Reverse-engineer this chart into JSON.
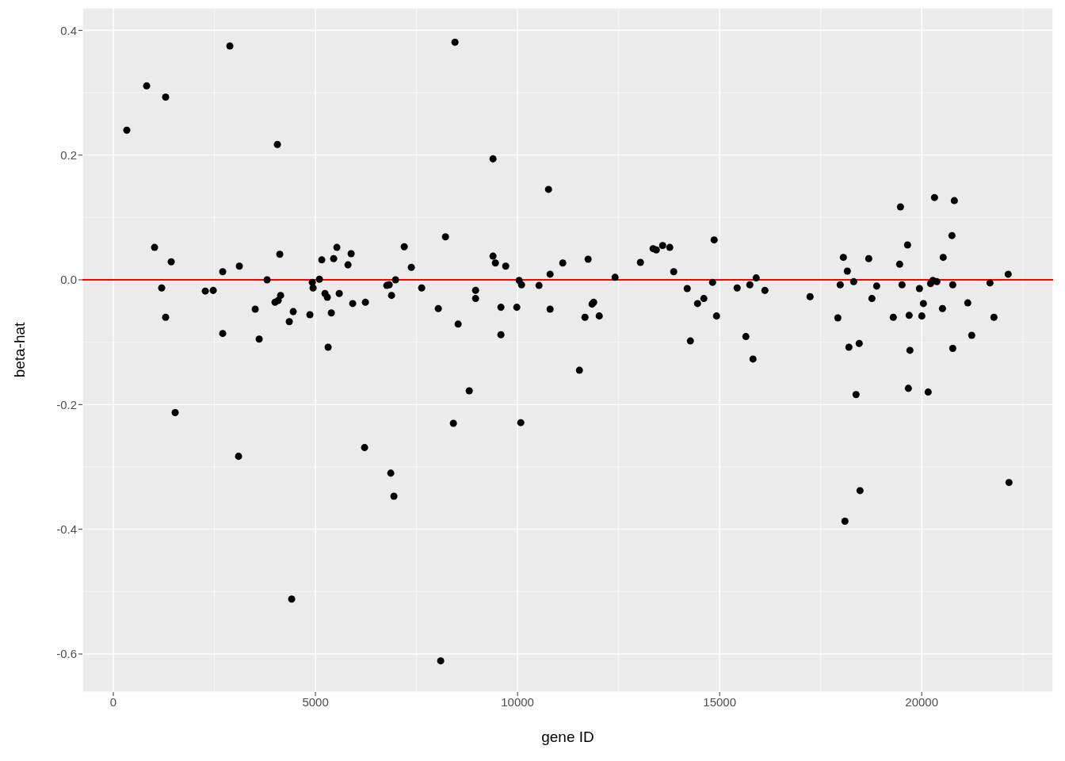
{
  "chart_data": {
    "type": "scatter",
    "xlabel": "gene ID",
    "ylabel": "beta-hat",
    "xlim": [
      -765,
      23250
    ],
    "ylim": [
      -0.661,
      0.436
    ],
    "xticks": [
      0,
      5000,
      10000,
      15000,
      20000
    ],
    "yticks": [
      -0.6,
      -0.4,
      -0.2,
      {
        "value": 0,
        "label": "0.0"
      },
      0.2,
      0.4
    ],
    "grid": true,
    "marker": "circle",
    "legend": false,
    "ref_lines": [
      {
        "axis": "y",
        "value": 0,
        "color": "#ff0000"
      }
    ],
    "series": [
      {
        "color": "#000000",
        "x": [
          333,
          824,
          1020,
          1196,
          1294,
          1294,
          1432,
          1530,
          2275,
          2471,
          2706,
          2706,
          2883,
          3098,
          3118,
          3510,
          3608,
          3804,
          4000,
          4059,
          4079,
          4118,
          4138,
          4353,
          4412,
          4451,
          4863,
          4922,
          4942,
          5098,
          5157,
          5236,
          5294,
          5314,
          5393,
          5451,
          5530,
          5589,
          5805,
          5883,
          5922,
          6216,
          6236,
          6765,
          6824,
          6864,
          6883,
          6942,
          6981,
          7197,
          7373,
          7628,
          8040,
          8099,
          8217,
          8413,
          8452,
          8530,
          8805,
          8962,
          8962,
          9393,
          9393,
          9452,
          9589,
          9589,
          9707,
          9982,
          10040,
          10080,
          10099,
          10531,
          10766,
          10805,
          10805,
          11119,
          11531,
          11668,
          11746,
          11844,
          11884,
          12021,
          12413,
          13040,
          13354,
          13433,
          13590,
          13766,
          13864,
          14198,
          14276,
          14453,
          14609,
          14825,
          14864,
          14923,
          15433,
          15649,
          15747,
          15825,
          15904,
          16120,
          17237,
          17924,
          17983,
          18061,
          18100,
          18159,
          18198,
          18316,
          18375,
          18453,
          18473,
          18689,
          18767,
          18885,
          19296,
          19453,
          19473,
          19512,
          19649,
          19669,
          19688,
          19708,
          19943,
          20002,
          20041,
          20159,
          20218,
          20276,
          20316,
          20374,
          20512,
          20531,
          20747,
          20767,
          20767,
          20806,
          21139,
          21237,
          21688,
          21786,
          22139,
          22159
        ],
        "values": [
          0.24,
          0.311,
          0.052,
          -0.013,
          0.293,
          -0.06,
          0.029,
          -0.213,
          -0.018,
          -0.017,
          0.013,
          -0.086,
          0.375,
          -0.283,
          0.022,
          -0.047,
          -0.095,
          0.0,
          -0.036,
          0.217,
          -0.033,
          0.041,
          -0.025,
          -0.067,
          -0.512,
          -0.051,
          -0.056,
          -0.004,
          -0.013,
          0.001,
          0.032,
          -0.022,
          -0.028,
          -0.108,
          -0.053,
          0.034,
          0.052,
          -0.022,
          0.024,
          0.042,
          -0.038,
          -0.269,
          -0.036,
          -0.009,
          -0.008,
          -0.31,
          -0.025,
          -0.347,
          0.0,
          0.053,
          0.02,
          -0.013,
          -0.046,
          -0.611,
          0.069,
          -0.23,
          0.381,
          -0.071,
          -0.178,
          -0.017,
          -0.03,
          0.194,
          0.038,
          0.027,
          -0.044,
          -0.088,
          0.022,
          -0.044,
          -0.001,
          -0.229,
          -0.008,
          -0.009,
          0.145,
          0.009,
          -0.047,
          0.027,
          -0.145,
          -0.06,
          0.033,
          -0.039,
          -0.036,
          -0.058,
          0.004,
          0.028,
          0.05,
          0.048,
          0.055,
          0.052,
          0.013,
          -0.014,
          -0.098,
          -0.038,
          -0.03,
          -0.004,
          0.064,
          -0.058,
          -0.013,
          -0.091,
          -0.008,
          -0.127,
          0.003,
          -0.017,
          -0.027,
          -0.061,
          -0.008,
          0.036,
          -0.387,
          0.014,
          -0.108,
          -0.003,
          -0.184,
          -0.102,
          -0.338,
          0.034,
          -0.03,
          -0.01,
          -0.06,
          0.025,
          0.117,
          -0.008,
          0.056,
          -0.174,
          -0.057,
          -0.113,
          -0.014,
          -0.058,
          -0.038,
          -0.18,
          -0.006,
          -0.001,
          0.132,
          -0.003,
          -0.046,
          0.036,
          0.071,
          -0.008,
          -0.11,
          0.127,
          -0.037,
          -0.089,
          -0.005,
          -0.06,
          0.009,
          -0.325
        ]
      }
    ]
  }
}
